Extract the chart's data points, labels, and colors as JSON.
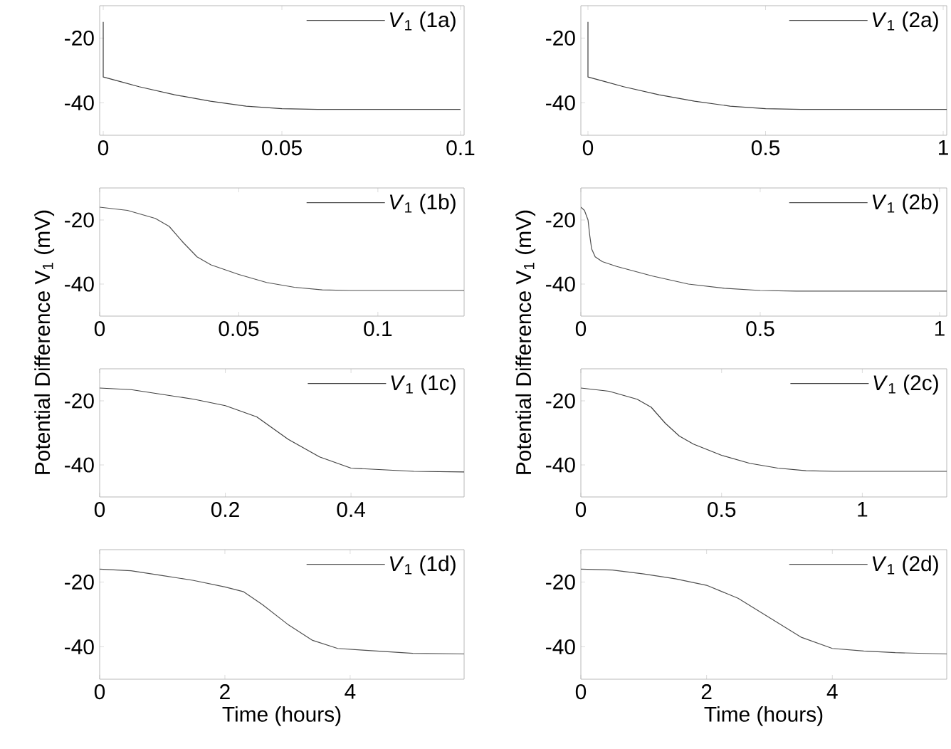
{
  "chart_data": [
    {
      "type": "line",
      "legend": "top right",
      "xlim": [
        -0.001,
        0.101
      ],
      "ylim": [
        -50,
        -10
      ],
      "xticks": [
        0,
        0.05,
        0.1
      ],
      "yticks": [
        -40,
        -20
      ],
      "series": [
        {
          "name": "*V*$_{1}$   (1a)",
          "color": "#404040",
          "x": [
            0,
            0,
            0.005,
            0.01,
            0.02,
            0.03,
            0.04,
            0.05,
            0.06,
            0.1
          ],
          "values": [
            -15,
            -32,
            -33.5,
            -35,
            -37.5,
            -39.5,
            -41,
            -41.8,
            -42,
            -42
          ]
        }
      ]
    },
    {
      "type": "line",
      "legend": "top right",
      "xlim": [
        -0.02,
        1.01
      ],
      "ylim": [
        -50,
        -10
      ],
      "xticks": [
        0,
        0.5,
        1
      ],
      "yticks": [
        -40,
        -20
      ],
      "series": [
        {
          "name": "*V*$_{1}$   (2a)",
          "color": "#404040",
          "x": [
            0,
            0,
            0.05,
            0.1,
            0.2,
            0.3,
            0.4,
            0.5,
            0.6,
            1.01
          ],
          "values": [
            -15,
            -32,
            -33.5,
            -35,
            -37.5,
            -39.5,
            -41,
            -41.8,
            -42,
            -42
          ]
        }
      ]
    },
    {
      "type": "line",
      "legend": "top right",
      "xlim": [
        0,
        0.131
      ],
      "ylim": [
        -50,
        -10
      ],
      "xticks": [
        0,
        0.05,
        0.1
      ],
      "yticks": [
        -40,
        -20
      ],
      "series": [
        {
          "name": "*V*$_{1}$ (1b)",
          "color": "#505050",
          "x": [
            0,
            0.01,
            0.02,
            0.025,
            0.03,
            0.035,
            0.04,
            0.05,
            0.06,
            0.07,
            0.08,
            0.09,
            0.131
          ],
          "values": [
            -16,
            -17,
            -19.5,
            -22,
            -27,
            -31.5,
            -34,
            -37,
            -39.5,
            -41,
            -41.8,
            -42,
            -42
          ]
        }
      ]
    },
    {
      "type": "line",
      "legend": "top right",
      "xlim": [
        0,
        1.02
      ],
      "ylim": [
        -50,
        -10
      ],
      "xticks": [
        0,
        0.5,
        1
      ],
      "yticks": [
        -40,
        -20
      ],
      "series": [
        {
          "name": "*V*$_{1}$  (2b)",
          "color": "#505050",
          "x": [
            0,
            0.01,
            0.02,
            0.025,
            0.03,
            0.04,
            0.06,
            0.1,
            0.2,
            0.3,
            0.4,
            0.5,
            0.6,
            1.02
          ],
          "values": [
            -16,
            -17,
            -20,
            -25,
            -29,
            -31.5,
            -33,
            -34.5,
            -37.5,
            -40,
            -41.3,
            -42,
            -42.2,
            -42.2
          ]
        }
      ]
    },
    {
      "type": "line",
      "legend": "top right",
      "ylabel": "Potential Difference V$_{1}$ (mV)",
      "xlim": [
        0,
        0.58
      ],
      "ylim": [
        -50,
        -10
      ],
      "xticks": [
        0,
        0.2,
        0.4
      ],
      "yticks": [
        -40,
        -20
      ],
      "series": [
        {
          "name": "*V*$_{1}$ (1c)",
          "color": "#404040",
          "x": [
            0,
            0.05,
            0.1,
            0.15,
            0.2,
            0.25,
            0.3,
            0.35,
            0.4,
            0.45,
            0.5,
            0.58
          ],
          "values": [
            -16,
            -16.5,
            -18,
            -19.5,
            -21.5,
            -25,
            -32,
            -37.5,
            -41,
            -41.5,
            -42,
            -42.2
          ]
        }
      ]
    },
    {
      "type": "line",
      "legend": "top right",
      "ylabel": "Potential Difference V$_{1}$ (mV)",
      "xlim": [
        0,
        1.3
      ],
      "ylim": [
        -50,
        -10
      ],
      "xticks": [
        0,
        0.5,
        1
      ],
      "yticks": [
        -40,
        -20
      ],
      "series": [
        {
          "name": "*V*$_{1}$  (2c)",
          "color": "#404040",
          "x": [
            0,
            0.1,
            0.2,
            0.25,
            0.3,
            0.35,
            0.4,
            0.5,
            0.6,
            0.7,
            0.8,
            0.9,
            1.3
          ],
          "values": [
            -16,
            -17,
            -19.5,
            -22,
            -27,
            -31,
            -33.5,
            -37,
            -39.5,
            -41,
            -41.8,
            -42,
            -42
          ]
        }
      ]
    },
    {
      "type": "line",
      "legend": "top right",
      "xlabel": "Time (hours)",
      "xlim": [
        0,
        5.82
      ],
      "ylim": [
        -50,
        -10
      ],
      "xticks": [
        0,
        2,
        4
      ],
      "yticks": [
        -40,
        -20
      ],
      "series": [
        {
          "name": "*V*$_{1}$ (1d)",
          "color": "#505050",
          "x": [
            0,
            0.5,
            1,
            1.5,
            2,
            2.3,
            2.6,
            3,
            3.4,
            3.8,
            4.2,
            5,
            5.82
          ],
          "values": [
            -16,
            -16.5,
            -18,
            -19.5,
            -21.5,
            -23,
            -27,
            -33,
            -38,
            -40.5,
            -41,
            -42,
            -42.2
          ]
        }
      ]
    },
    {
      "type": "line",
      "legend": "top right",
      "xlabel": "Time (hours)",
      "xlim": [
        0,
        5.82
      ],
      "ylim": [
        -50,
        -10
      ],
      "xticks": [
        0,
        2,
        4
      ],
      "yticks": [
        -40,
        -20
      ],
      "series": [
        {
          "name": "*V*$_{1}$ (2d)",
          "color": "#505050",
          "x": [
            0,
            0.5,
            1,
            1.5,
            2,
            2.5,
            3,
            3.5,
            4,
            4.5,
            5,
            5.82
          ],
          "values": [
            -16,
            -16.3,
            -17.5,
            -19,
            -21,
            -25,
            -31,
            -37,
            -40.5,
            -41.3,
            -41.8,
            -42.2
          ]
        }
      ]
    }
  ]
}
